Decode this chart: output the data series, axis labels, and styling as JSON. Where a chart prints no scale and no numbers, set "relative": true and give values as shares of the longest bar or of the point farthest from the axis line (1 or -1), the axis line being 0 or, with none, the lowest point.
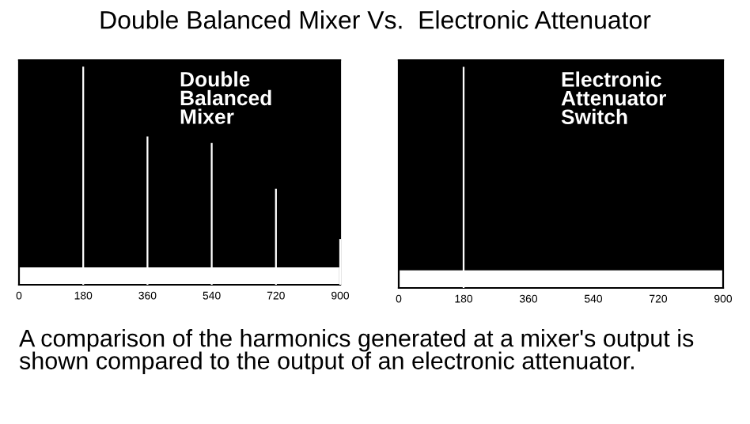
{
  "chart_data": [
    {
      "type": "bar",
      "title": "Double Balanced Mixer Vs.  Electronic Attenuator",
      "relative": true,
      "xlim": [
        0,
        900
      ],
      "xticks": [
        0,
        180,
        360,
        540,
        720,
        900
      ],
      "grid": false,
      "legend": false,
      "annotations": [
        "Double\nBalanced\nMixer"
      ],
      "series": [
        {
          "type": "area",
          "color": "#ffffff",
          "x": [
            0,
            900
          ],
          "values": [
            0.08,
            0.08
          ]
        },
        {
          "color": "#ffffff",
          "x": [
            180,
            360,
            540,
            720,
            900
          ],
          "values": [
            1,
            0.68,
            0.65,
            0.44,
            0.21
          ]
        }
      ]
    },
    {
      "type": "bar",
      "relative": true,
      "xlim": [
        0,
        900
      ],
      "xticks": [
        0,
        180,
        360,
        540,
        720,
        900
      ],
      "grid": false,
      "legend": false,
      "annotations": [
        "Electronic\nAttenuator\nSwitch",
        "A comparison of the harmonics generated at a mixer's output is shown compared to the output of an electronic attenuator."
      ],
      "series": [
        {
          "type": "area",
          "color": "#ffffff",
          "x": [
            0,
            900
          ],
          "values": [
            0.08,
            0.08
          ]
        },
        {
          "color": "#ffffff",
          "x": [
            180
          ],
          "values": [
            1
          ]
        }
      ]
    }
  ]
}
